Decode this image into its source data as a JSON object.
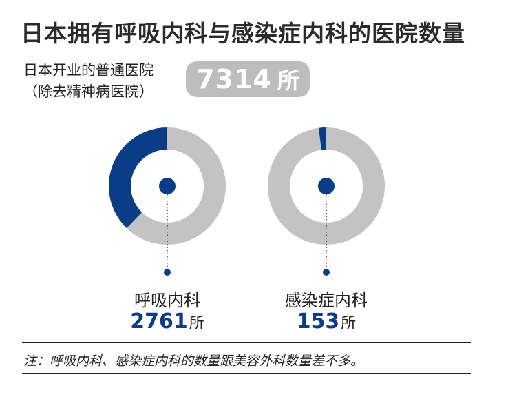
{
  "title": "日本拥有呼吸内科与感染症内科的医院数量",
  "subtitle_line1": "日本开业的普通医院",
  "subtitle_line2": "（除去精神病医院）",
  "total": {
    "value": "7314",
    "unit": "所"
  },
  "footnote": "注：呼吸内科、感染症内科的数量跟美容外科数量差不多。",
  "colors": {
    "highlight": "#0b3d86",
    "remainder": "#c3c3c3",
    "pill": "#bdbdbd"
  },
  "chart_data": {
    "type": "pie",
    "total": 7314,
    "unit": "所",
    "charts": [
      {
        "label": "呼吸内科",
        "value": 2761,
        "display": "2761"
      },
      {
        "label": "感染症内科",
        "value": 153,
        "display": "153"
      }
    ]
  }
}
